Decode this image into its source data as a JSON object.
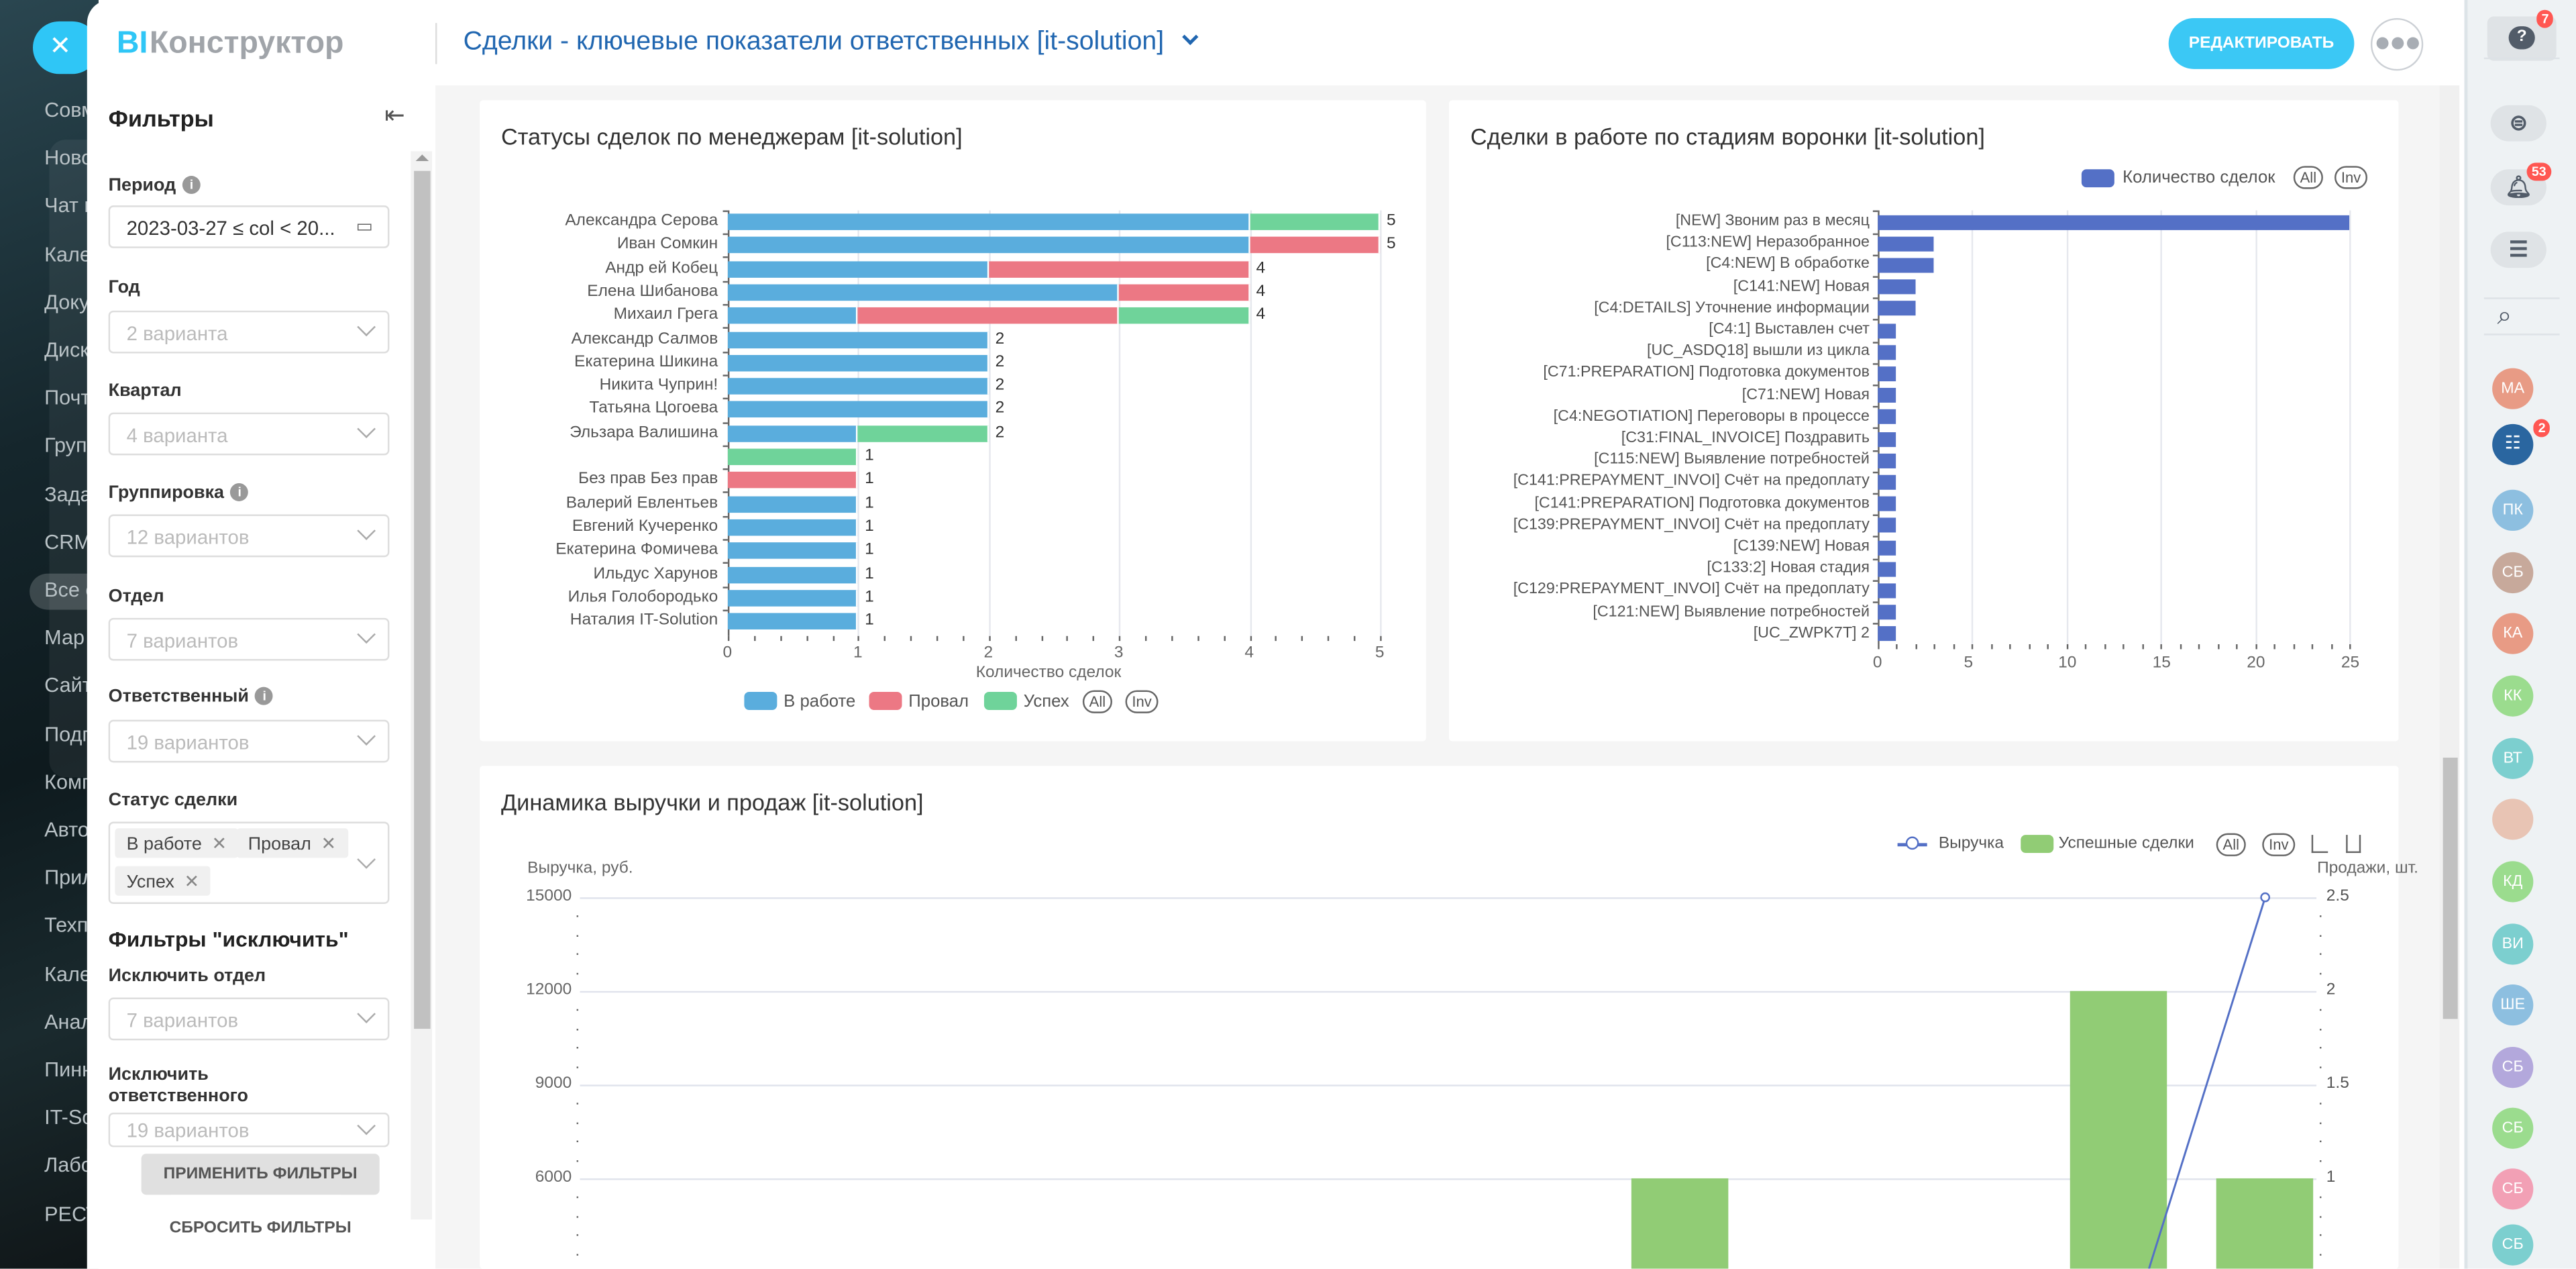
{
  "leftnav": {
    "close_icon": "close-icon",
    "items": [
      "Совм",
      "Ново",
      "Чат и",
      "Кале",
      "Доку",
      "Диск",
      "Почт",
      "Груп",
      "Зада",
      "CRM",
      "Все с",
      "Мар",
      "Сайт",
      "Подп",
      "Комп",
      "Авто",
      "Прил",
      "Техп",
      "Кале",
      "Анал",
      "Пинн",
      "IT-So",
      "Лабо",
      "РЕСТ"
    ]
  },
  "header": {
    "logo_bi": "BI",
    "logo_rest": "Конструктор",
    "title": "Сделки - ключевые показатели ответственных [it-solution]",
    "edit_label": "РЕДАКТИРОВАТЬ",
    "more_icon": "more-icon"
  },
  "filters": {
    "title": "Фильтры",
    "period": {
      "label": "Период",
      "value": "2023-03-27 ≤ col < 20..."
    },
    "year": {
      "label": "Год",
      "placeholder": "2 варианта"
    },
    "quarter": {
      "label": "Квартал",
      "placeholder": "4 варианта"
    },
    "grouping": {
      "label": "Группировка",
      "placeholder": "12 вариантов"
    },
    "department": {
      "label": "Отдел",
      "placeholder": "7 вариантов"
    },
    "responsible": {
      "label": "Ответственный",
      "placeholder": "19 вариантов"
    },
    "status": {
      "label": "Статус сделки",
      "tags": [
        "В работе",
        "Провал",
        "Успех"
      ]
    },
    "exclude_title": "Фильтры \"исключить\"",
    "exclude_department": {
      "label": "Исключить отдел",
      "placeholder": "7 вариантов"
    },
    "exclude_responsible": {
      "label1": "Исключить",
      "label2": "ответственного",
      "placeholder": "19 вариантов"
    },
    "apply_label": "ПРИМЕНИТЬ ФИЛЬТРЫ",
    "reset_label": "СБРОСИТЬ ФИЛЬТРЫ"
  },
  "rightbar": {
    "help_badge": "7",
    "notif_badge": "53",
    "chat_badge": "2",
    "avatars": [
      "МА",
      "ПК",
      "СБ",
      "КА",
      "КК",
      "ВТ",
      "КД",
      "ВИ",
      "ШЕ",
      "СБ",
      "СБ",
      "СБ",
      "СБ"
    ],
    "colors": [
      "#e89b85",
      "#8dbfe0",
      "#c7a99b",
      "#e89b85",
      "#9bdc8e",
      "#7ccfcf",
      "#9bdc8e",
      "#7ccfcf",
      "#8dbfe0",
      "#b3a8dc",
      "#9bdc8e",
      "#f2a0b5",
      "#7ccfcf"
    ]
  },
  "chart_data": [
    {
      "type": "bar",
      "orientation": "horizontal",
      "stacked": true,
      "title": "Статусы сделок по менеджерам [it-solution]",
      "xlabel": "Количество сделок",
      "xlim": [
        0,
        5
      ],
      "xticks": [
        "0",
        "1",
        "2",
        "3",
        "4",
        "5"
      ],
      "categories": [
        "Александра Серова",
        "Иван Сомкин",
        "Андр ей Кобец",
        "Елена Шибанова",
        "Михаил Грега",
        "Александр Салмов",
        "Екатерина Шикина",
        "Никита Чуприн!",
        "Татьяна Цогоева",
        "Эльзара Валишина",
        "",
        "Без прав Без прав",
        "Валерий Евлентьев",
        "Евгений Кучеренко",
        "Екатерина  Фомичева",
        "Ильдус Харунов",
        "Илья Голобородько",
        "Наталия IT-Solution"
      ],
      "series": [
        {
          "name": "В работе",
          "color": "#5aaddd",
          "values": [
            4,
            4,
            2,
            3,
            1,
            2,
            2,
            2,
            2,
            1,
            0,
            0,
            1,
            1,
            1,
            1,
            1,
            1
          ]
        },
        {
          "name": "Провал",
          "color": "#ec7884",
          "values": [
            0,
            1,
            2,
            1,
            2,
            0,
            0,
            0,
            0,
            0,
            0,
            1,
            0,
            0,
            0,
            0,
            0,
            0
          ]
        },
        {
          "name": "Успех",
          "color": "#6fd39a",
          "values": [
            1,
            0,
            0,
            0,
            1,
            0,
            0,
            0,
            0,
            1,
            1,
            0,
            0,
            0,
            0,
            0,
            0,
            0
          ]
        }
      ],
      "totals": [
        "5",
        "5",
        "4",
        "4",
        "4",
        "2",
        "2",
        "2",
        "2",
        "2",
        "1",
        "1",
        "1",
        "1",
        "1",
        "1",
        "1",
        "1"
      ],
      "legend": "bottom",
      "legend_buttons": [
        "All",
        "Inv"
      ]
    },
    {
      "type": "bar",
      "orientation": "horizontal",
      "title": "Сделки в работе по стадиям воронки [it-solution]",
      "xlim": [
        0,
        25
      ],
      "xticks": [
        "0",
        "5",
        "10",
        "15",
        "20",
        "25"
      ],
      "categories": [
        "[NEW] Звоним раз в месяц",
        "[C113:NEW] Неразобранное",
        "[C4:NEW] В обработке",
        "[C141:NEW] Новая",
        "[C4:DETAILS] Уточнение информации",
        "[C4:1] Выставлен счет",
        "[UC_ASDQ18] вышли из цикла",
        "[C71:PREPARATION] Подготовка документов",
        "[C71:NEW] Новая",
        "[C4:NEGOTIATION] Переговоры в процессе",
        "[C31:FINAL_INVOICE] Поздравить",
        "[C115:NEW] Выявление потребностей",
        "[C141:PREPAYMENT_INVOI] Счёт на предоплату",
        "[C141:PREPARATION] Подготовка документов",
        "[C139:PREPAYMENT_INVOI] Счёт на предоплату",
        "[C139:NEW] Новая",
        "[C133:2] Новая стадия",
        "[C129:PREPAYMENT_INVOI] Счёт на предоплату",
        "[C121:NEW] Выявление потребностей",
        "[UC_ZWPK7T] 2"
      ],
      "series": [
        {
          "name": "Количество сделок",
          "color": "#5470c6",
          "values": [
            25,
            3,
            3,
            2,
            2,
            1,
            1,
            1,
            1,
            1,
            1,
            1,
            1,
            1,
            1,
            1,
            1,
            1,
            1,
            1
          ]
        }
      ],
      "legend": "top-right",
      "legend_buttons": [
        "All",
        "Inv"
      ]
    },
    {
      "type": "bar+line",
      "title": "Динамика выручки и продаж [it-solution]",
      "ylabel_left": "Выручка, руб.",
      "ylabel_right": "Продажи, шт.",
      "ylim_left": [
        0,
        15000
      ],
      "ylim_right": [
        0,
        2.5
      ],
      "yticks_left": [
        "15000",
        "12000",
        "9000",
        "6000"
      ],
      "yticks_right": [
        "2.5",
        "2",
        "1.5",
        "1"
      ],
      "series": [
        {
          "name": "Выручка",
          "type": "line",
          "color": "#5470c6",
          "axis": "left",
          "values": [
            0,
            0,
            0,
            0,
            0,
            0,
            0,
            0,
            0,
            0,
            0,
            15000
          ]
        },
        {
          "name": "Успешные сделки",
          "type": "bar",
          "color": "#91cc75",
          "axis": "right",
          "values": [
            0,
            0,
            0,
            0,
            0,
            0,
            0,
            1,
            0,
            0,
            2,
            1
          ]
        }
      ],
      "legend": "top-right",
      "legend_buttons": [
        "All",
        "Inv"
      ]
    }
  ]
}
